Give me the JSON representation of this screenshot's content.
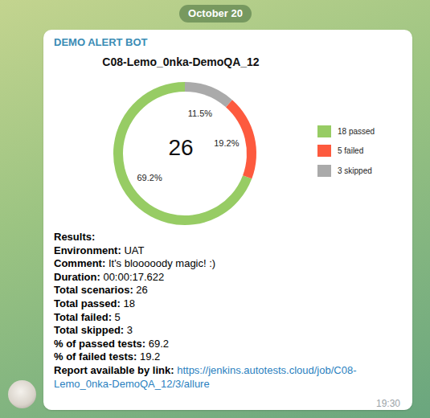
{
  "date": "October 20",
  "sender": "DEMO ALERT BOT",
  "chart_data": {
    "type": "donut",
    "title": "C08-Lemo_0nka-DemoQA_12",
    "total": 26,
    "categories": [
      "18 passed",
      "5 failed",
      "3 skipped"
    ],
    "values": [
      69.2,
      19.2,
      11.5
    ],
    "value_labels": [
      "69.2%",
      "19.2%",
      "11.5%"
    ],
    "colors": [
      "#97cc64",
      "#fd5a3e",
      "#aaaaaa"
    ],
    "data_labels": true,
    "legend": "right"
  },
  "results": {
    "heading": "Results:",
    "fields": [
      {
        "label": "Environment:",
        "value": "UAT"
      },
      {
        "label": "Comment:",
        "value": "It's blooooody magic! :)"
      },
      {
        "label": "Duration:",
        "value": "00:00:17.622"
      },
      {
        "label": "Total scenarios:",
        "value": 26
      },
      {
        "label": "Total passed:",
        "value": 18
      },
      {
        "label": "Total failed:",
        "value": 5
      },
      {
        "label": "Total skipped:",
        "value": 3
      },
      {
        "label": "% of passed tests:",
        "value": 69.2
      },
      {
        "label": "% of failed tests:",
        "value": 19.2
      }
    ],
    "link": {
      "label": "Report available by link:",
      "url": "https://jenkins.autotests.cloud/job/C08-Lemo_0nka-DemoQA_12/3/allure"
    }
  },
  "time": "19:30"
}
